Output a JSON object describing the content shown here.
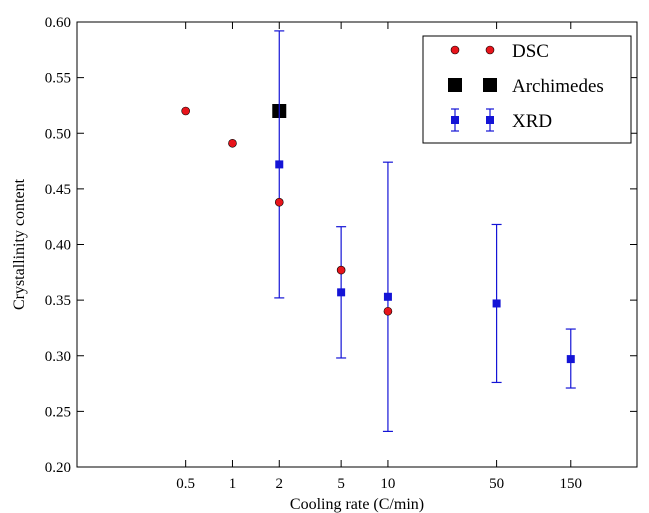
{
  "chart_data": {
    "type": "scatter",
    "xlabel": "Cooling rate (C/min)",
    "ylabel": "Crystallinity content",
    "x_scale": "log",
    "xlim": [
      0.1,
      400
    ],
    "ylim": [
      0.2,
      0.6
    ],
    "x_ticks": [
      0.5,
      1,
      2,
      5,
      10,
      50,
      150
    ],
    "x_tick_labels": [
      "0.5",
      "1",
      "2",
      "5",
      "10",
      "50",
      "150"
    ],
    "y_ticks": [
      0.2,
      0.25,
      0.3,
      0.35,
      0.4,
      0.45,
      0.5,
      0.55,
      0.6
    ],
    "y_tick_labels": [
      "0.20",
      "0.25",
      "0.30",
      "0.35",
      "0.40",
      "0.45",
      "0.50",
      "0.55",
      "0.60"
    ],
    "grid": false,
    "legend_position": "top-right",
    "series": [
      {
        "name": "DSC",
        "marker": "circle",
        "color": "#e8141b",
        "points": [
          {
            "x": 0.5,
            "y": 0.52
          },
          {
            "x": 1,
            "y": 0.491
          },
          {
            "x": 2,
            "y": 0.438
          },
          {
            "x": 5,
            "y": 0.377
          },
          {
            "x": 10,
            "y": 0.34
          }
        ]
      },
      {
        "name": "Archimedes",
        "marker": "square-large",
        "color": "#000000",
        "points": [
          {
            "x": 2,
            "y": 0.52
          }
        ]
      },
      {
        "name": "XRD",
        "marker": "square",
        "color": "#1414d6",
        "points": [
          {
            "x": 2,
            "y": 0.472,
            "err_low": 0.352,
            "err_high": 0.592
          },
          {
            "x": 5,
            "y": 0.357,
            "err_low": 0.298,
            "err_high": 0.416
          },
          {
            "x": 10,
            "y": 0.353,
            "err_low": 0.232,
            "err_high": 0.474
          },
          {
            "x": 50,
            "y": 0.347,
            "err_low": 0.276,
            "err_high": 0.418
          },
          {
            "x": 150,
            "y": 0.297,
            "err_low": 0.271,
            "err_high": 0.324
          }
        ]
      }
    ]
  }
}
